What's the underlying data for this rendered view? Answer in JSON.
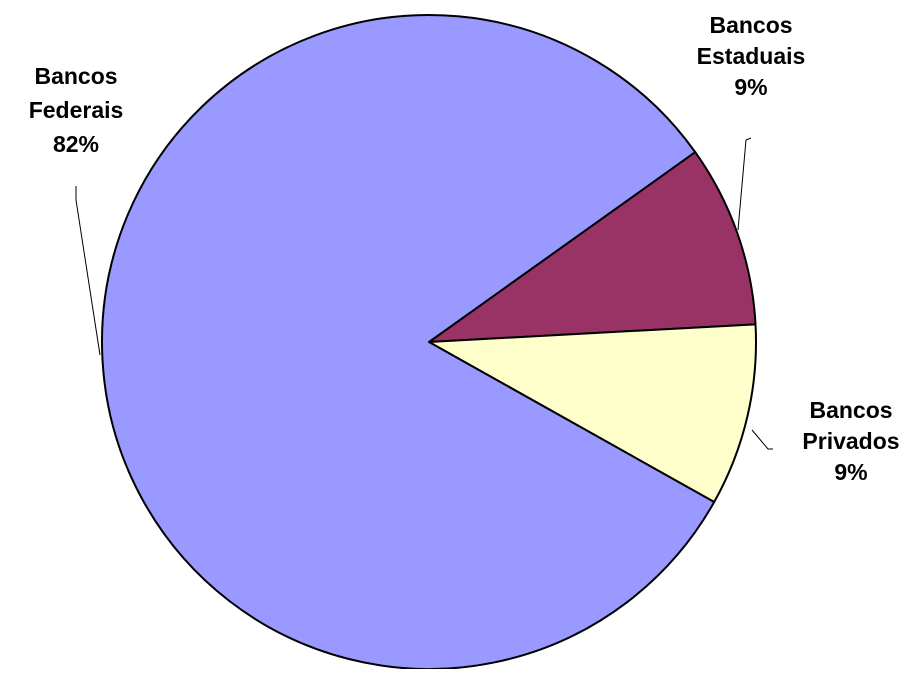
{
  "chart_data": {
    "type": "pie",
    "title": "",
    "slices": [
      {
        "name_lines": [
          "Bancos",
          "Estaduais"
        ],
        "percent_label": "9%",
        "value": 9,
        "color": "#993366"
      },
      {
        "name_lines": [
          "Bancos",
          "Privados"
        ],
        "percent_label": "9%",
        "value": 9,
        "color": "#FFFFCC"
      },
      {
        "name_lines": [
          "Bancos",
          "Federais"
        ],
        "percent_label": "82%",
        "value": 82,
        "color": "#9999FF"
      }
    ],
    "legend": "none",
    "labels": "outside-with-leader-lines"
  }
}
